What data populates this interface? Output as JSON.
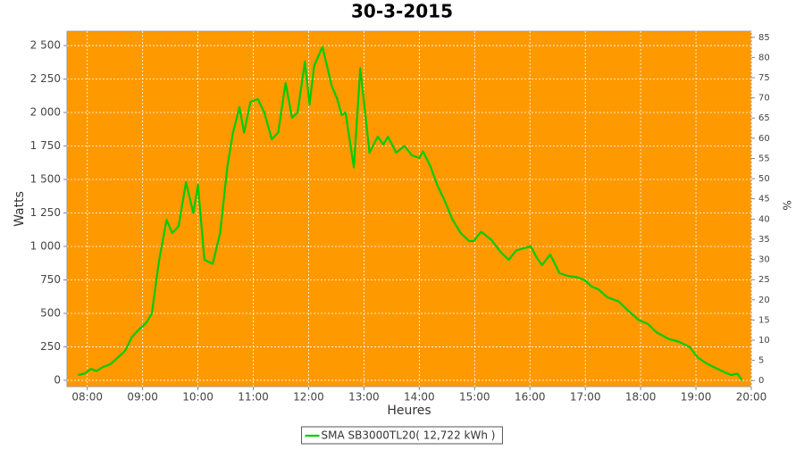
{
  "chart_data": {
    "type": "line",
    "title": "30-3-2015",
    "x_label": "Heures",
    "y_label": "Watts",
    "y2_label": "%",
    "background": "#ff9900",
    "grid": true,
    "x": [
      "07:50",
      "07:57",
      "08:04",
      "08:10",
      "08:17",
      "08:25",
      "08:33",
      "08:41",
      "08:48",
      "08:56",
      "09:04",
      "09:10",
      "09:18",
      "09:22",
      "09:26",
      "09:32",
      "09:39",
      "09:47",
      "09:55",
      "10:00",
      "10:07",
      "10:16",
      "10:24",
      "10:32",
      "10:38",
      "10:45",
      "10:50",
      "10:57",
      "11:05",
      "11:12",
      "11:20",
      "11:27",
      "11:35",
      "11:42",
      "11:48",
      "11:56",
      "12:01",
      "12:06",
      "12:15",
      "12:25",
      "12:31",
      "12:36",
      "12:40",
      "12:49",
      "12:56",
      "13:06",
      "13:15",
      "13:21",
      "13:26",
      "13:35",
      "13:44",
      "13:52",
      "14:00",
      "14:04",
      "14:12",
      "14:20",
      "14:27",
      "14:36",
      "14:45",
      "14:54",
      "14:59",
      "15:07",
      "15:18",
      "15:28",
      "15:37",
      "15:45",
      "15:55",
      "16:01",
      "16:07",
      "16:13",
      "16:22",
      "16:32",
      "16:41",
      "16:51",
      "16:59",
      "17:07",
      "17:14",
      "17:24",
      "17:36",
      "17:45",
      "17:58",
      "18:08",
      "18:17",
      "18:30",
      "18:41",
      "18:53",
      "19:02",
      "19:13",
      "19:25",
      "19:38",
      "19:45",
      "19:50"
    ],
    "series": [
      {
        "name": "SMA SB3000TL20( 12,722 kWh )",
        "color": "#00cc00",
        "values": [
          40,
          50,
          85,
          70,
          100,
          120,
          170,
          220,
          320,
          380,
          430,
          500,
          900,
          1050,
          1200,
          1100,
          1150,
          1480,
          1250,
          1460,
          900,
          870,
          1100,
          1600,
          1850,
          2040,
          1850,
          2080,
          2100,
          2000,
          1800,
          1850,
          2220,
          1960,
          2000,
          2380,
          2060,
          2350,
          2490,
          2200,
          2100,
          1980,
          2000,
          1590,
          2330,
          1700,
          1820,
          1760,
          1820,
          1700,
          1750,
          1680,
          1660,
          1710,
          1600,
          1450,
          1350,
          1200,
          1100,
          1040,
          1040,
          1110,
          1050,
          960,
          900,
          970,
          990,
          1000,
          920,
          860,
          940,
          800,
          780,
          770,
          750,
          700,
          680,
          620,
          590,
          530,
          450,
          420,
          360,
          310,
          290,
          250,
          170,
          120,
          80,
          40,
          50,
          0
        ]
      }
    ],
    "xlim": [
      "07:38",
      "20:00"
    ],
    "xticks": [
      "08:00",
      "09:00",
      "10:00",
      "11:00",
      "12:00",
      "13:00",
      "14:00",
      "15:00",
      "16:00",
      "17:00",
      "18:00",
      "19:00",
      "20:00"
    ],
    "ylim": [
      -47,
      2607
    ],
    "yticks": [
      0,
      250,
      500,
      750,
      {
        "value": 1000,
        "label": "1 000"
      },
      {
        "value": 1250,
        "label": "1 250"
      },
      {
        "value": 1500,
        "label": "1 500"
      },
      {
        "value": 1750,
        "label": "1 750"
      },
      {
        "value": 2000,
        "label": "2 000"
      },
      {
        "value": 2250,
        "label": "2 250"
      },
      {
        "value": 2500,
        "label": "2 500"
      }
    ],
    "y2lim": [
      -1.5,
      86.5
    ],
    "y2ticks": [
      0,
      5,
      10,
      15,
      20,
      25,
      30,
      35,
      40,
      45,
      50,
      55,
      60,
      65,
      70,
      75,
      80,
      85
    ]
  }
}
